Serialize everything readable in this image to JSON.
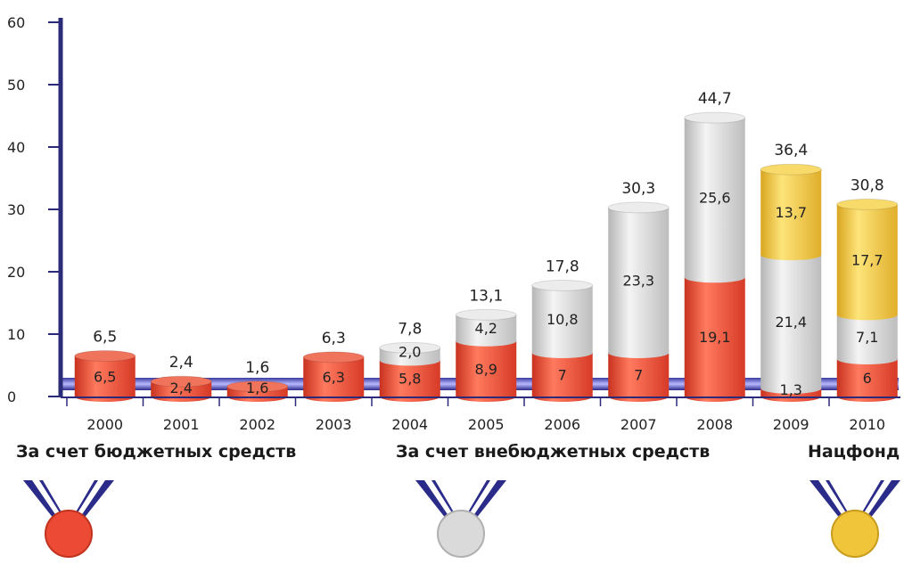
{
  "chart_data": {
    "type": "bar",
    "stacked": true,
    "categories": [
      "2000",
      "2001",
      "2002",
      "2003",
      "2004",
      "2005",
      "2006",
      "2007",
      "2008",
      "2009",
      "2010"
    ],
    "series": [
      {
        "name": "За счет бюджетных средств",
        "color": "#ec4a35",
        "values": [
          6.5,
          2.4,
          1.6,
          6.3,
          5.8,
          8.9,
          7,
          7,
          19.1,
          1.3,
          6
        ],
        "labels": [
          "6,5",
          "2,4",
          "1,6",
          "6,3",
          "5,8",
          "8,9",
          "7",
          "7",
          "19,1",
          "1,3",
          "6"
        ]
      },
      {
        "name": "За счет внебюджетных средств",
        "color": "#d9d9d9",
        "values": [
          0,
          0,
          0,
          0,
          2.0,
          4.2,
          10.8,
          23.3,
          25.6,
          21.4,
          7.1
        ],
        "labels": [
          "",
          "",
          "",
          "",
          "2,0",
          "4,2",
          "10,8",
          "23,3",
          "25,6",
          "21,4",
          "7,1"
        ]
      },
      {
        "name": "Нацфонд",
        "color": "#f0c53a",
        "values": [
          0,
          0,
          0,
          0,
          0,
          0,
          0,
          0,
          0,
          13.7,
          17.7
        ],
        "labels": [
          "",
          "",
          "",
          "",
          "",
          "",
          "",
          "",
          "",
          "13,7",
          "17,7"
        ]
      }
    ],
    "totals": [
      "6,5",
      "2,4",
      "1,6",
      "6,3",
      "7,8",
      "13,1",
      "17,8",
      "30,3",
      "44,7",
      "36,4",
      "30,8"
    ],
    "y_ticks": [
      "0",
      "10",
      "20",
      "30",
      "40",
      "50",
      "60"
    ],
    "ylim": [
      0,
      60
    ],
    "xlabel": "",
    "ylabel": "",
    "grid": false,
    "legend_placement": "bottom"
  },
  "legend": {
    "budget": "За счет бюджетных средств",
    "offbudget": "За счет внебюджетных средств",
    "natfund": "Нацфонд"
  },
  "colors": {
    "axis": "#2b2b7a",
    "red": "#ec4a35",
    "silver": "#d9d9d9",
    "gold": "#f0c53a"
  }
}
